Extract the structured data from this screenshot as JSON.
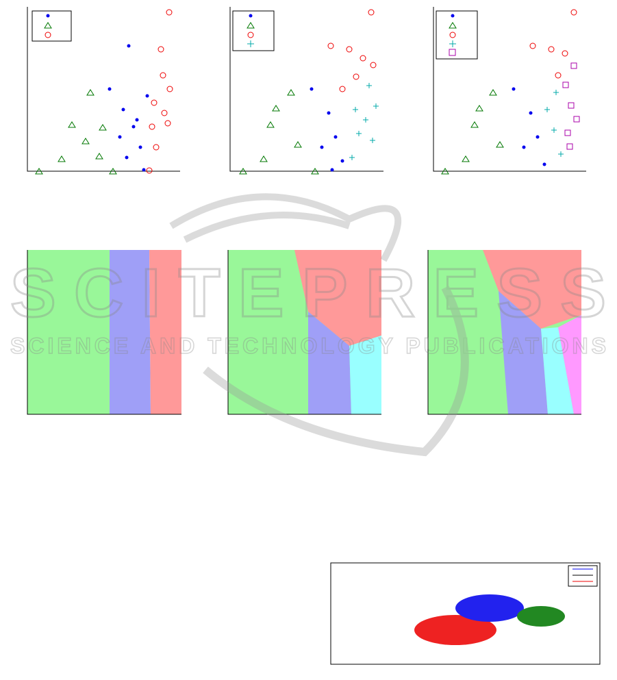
{
  "watermark": {
    "title": "SCITEPRESS",
    "subtitle": "SCIENCE AND TECHNOLOGY PUBLICATIONS"
  }
}
